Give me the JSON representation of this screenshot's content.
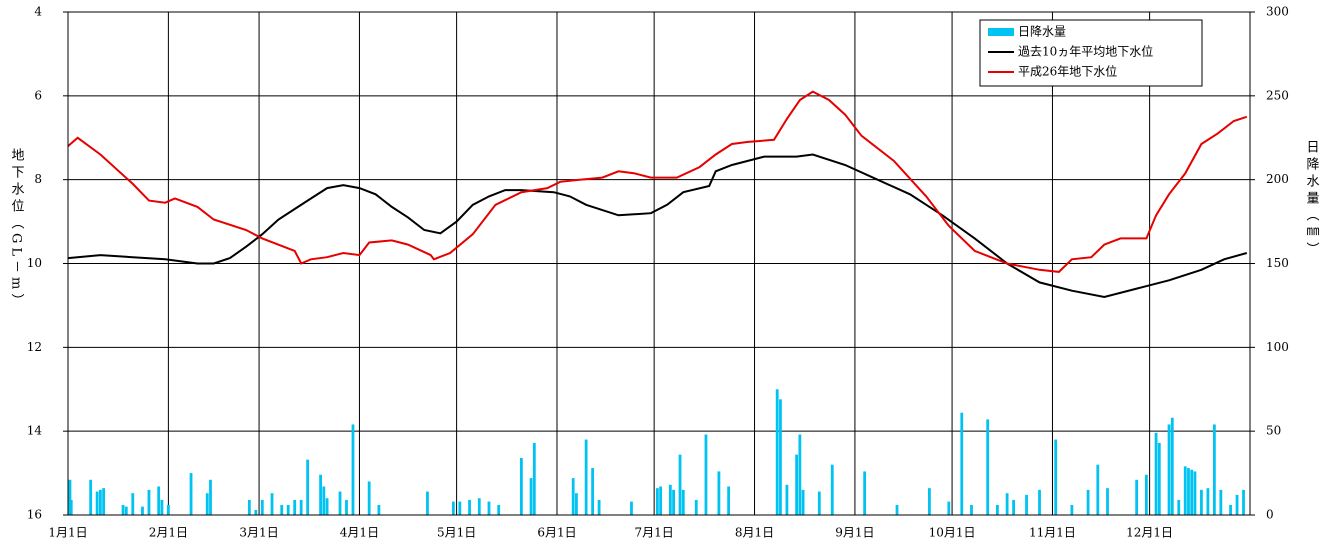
{
  "chart_data": {
    "type": "combo",
    "ylabel": "地下水位（GL－m）",
    "y2label": "日降水量（㎜）",
    "xlim": [
      0,
      365
    ],
    "xticks": [
      {
        "value": 0,
        "label": "1月1日"
      },
      {
        "value": 31,
        "label": "2月1日"
      },
      {
        "value": 59,
        "label": "3月1日"
      },
      {
        "value": 90,
        "label": "4月1日"
      },
      {
        "value": 120,
        "label": "5月1日"
      },
      {
        "value": 151,
        "label": "6月1日"
      },
      {
        "value": 181,
        "label": "7月1日"
      },
      {
        "value": 212,
        "label": "8月1日"
      },
      {
        "value": 243,
        "label": "9月1日"
      },
      {
        "value": 273,
        "label": "10月1日"
      },
      {
        "value": 304,
        "label": "11月1日"
      },
      {
        "value": 334,
        "label": "12月1日"
      }
    ],
    "ylim": [
      16,
      4
    ],
    "yticks": [
      4,
      6,
      8,
      10,
      12,
      14,
      16
    ],
    "y2lim": [
      0,
      300
    ],
    "y2ticks": [
      0,
      50,
      100,
      150,
      200,
      250,
      300
    ],
    "grid": true,
    "legend": "upper right",
    "series": [
      {
        "name": "日降水量",
        "type": "bar",
        "axis": "y2",
        "color": "#00c3f2",
        "x": [
          0.6,
          1,
          7,
          9,
          10,
          11,
          17,
          18,
          20,
          23,
          25,
          28,
          29,
          31,
          38,
          43,
          44,
          56,
          58,
          60,
          63,
          66,
          68,
          70,
          72,
          74,
          78,
          79,
          80,
          84,
          86,
          88,
          93,
          96,
          111,
          119,
          121,
          124,
          127,
          130,
          133,
          140,
          143,
          144,
          156,
          157,
          160,
          162,
          164,
          174,
          182,
          183,
          186,
          187,
          189,
          190,
          194,
          197,
          201,
          204,
          219,
          220,
          222,
          225,
          226,
          227,
          232,
          236,
          246,
          256,
          266,
          272,
          276,
          279,
          284,
          287,
          290,
          292,
          296,
          300,
          305,
          310,
          315,
          318,
          321,
          330,
          333,
          336,
          337,
          340,
          341,
          343,
          345,
          346,
          347,
          348,
          350,
          352,
          354,
          356,
          359,
          361,
          363
        ],
        "values": [
          21,
          9,
          21,
          14,
          15,
          16,
          6,
          5,
          13,
          5,
          15,
          17,
          9,
          6,
          25,
          13,
          21,
          9,
          3,
          9,
          13,
          6,
          6,
          9,
          9,
          33,
          24,
          17,
          10,
          14,
          9,
          54,
          20,
          6,
          14,
          8,
          8,
          9,
          10,
          8,
          6,
          34,
          22,
          43,
          22,
          13,
          45,
          28,
          9,
          8,
          16,
          17,
          18,
          15,
          36,
          15,
          9,
          48,
          26,
          17,
          75,
          69,
          18,
          36,
          48,
          15,
          14,
          30,
          26,
          6,
          16,
          8,
          61,
          6,
          57,
          6,
          13,
          9,
          12,
          15,
          45,
          6,
          15,
          30,
          16,
          21,
          24,
          49,
          43,
          54,
          58,
          9,
          29,
          28,
          27,
          26,
          15,
          16,
          54,
          15,
          6,
          12,
          15
        ]
      },
      {
        "name": "過去10ヵ年平均地下水位",
        "type": "line",
        "color": "#000000",
        "x": [
          0,
          10,
          20,
          30,
          40,
          45,
          50,
          55,
          60,
          65,
          70,
          75,
          80,
          85,
          90,
          95,
          100,
          105,
          110,
          115,
          120,
          125,
          130,
          135,
          140,
          150,
          155,
          160,
          170,
          180,
          185,
          190,
          198,
          200,
          205,
          215,
          225,
          230,
          240,
          250,
          260,
          270,
          280,
          290,
          300,
          310,
          320,
          330,
          340,
          350,
          357,
          364
        ],
        "values": [
          9.87,
          9.8,
          9.85,
          9.9,
          10.0,
          10.0,
          9.87,
          9.6,
          9.3,
          8.95,
          8.7,
          8.45,
          8.2,
          8.13,
          8.2,
          8.35,
          8.65,
          8.9,
          9.2,
          9.28,
          9.0,
          8.6,
          8.4,
          8.25,
          8.25,
          8.3,
          8.4,
          8.6,
          8.85,
          8.8,
          8.6,
          8.3,
          8.15,
          7.8,
          7.65,
          7.45,
          7.45,
          7.4,
          7.65,
          8.0,
          8.35,
          8.85,
          9.4,
          10.0,
          10.45,
          10.65,
          10.8,
          10.6,
          10.4,
          10.15,
          9.9,
          9.75
        ]
      },
      {
        "name": "平成26年地下水位",
        "type": "line",
        "color": "#e60000",
        "x": [
          0,
          3,
          10,
          20,
          25,
          30,
          33,
          40,
          45,
          55,
          60,
          70,
          72,
          75,
          80,
          85,
          90,
          93,
          100,
          105,
          112,
          113,
          118,
          125,
          132,
          140,
          148,
          152,
          158,
          165,
          170,
          175,
          180,
          188,
          195,
          200,
          205,
          210,
          218,
          222,
          226,
          230,
          235,
          240,
          245,
          255,
          265,
          272,
          280,
          290,
          300,
          306,
          310,
          316,
          320,
          325,
          333,
          336,
          340,
          345,
          350,
          355,
          360,
          364
        ],
        "values": [
          7.2,
          7.0,
          7.4,
          8.1,
          8.5,
          8.55,
          8.45,
          8.65,
          8.95,
          9.2,
          9.4,
          9.7,
          10.0,
          9.9,
          9.85,
          9.75,
          9.8,
          9.5,
          9.45,
          9.55,
          9.8,
          9.9,
          9.75,
          9.3,
          8.6,
          8.3,
          8.2,
          8.05,
          8.0,
          7.95,
          7.8,
          7.85,
          7.95,
          7.95,
          7.7,
          7.4,
          7.15,
          7.1,
          7.05,
          6.55,
          6.1,
          5.9,
          6.1,
          6.45,
          6.95,
          7.55,
          8.4,
          9.1,
          9.7,
          10.0,
          10.15,
          10.2,
          9.9,
          9.85,
          9.55,
          9.4,
          9.4,
          8.85,
          8.35,
          7.85,
          7.15,
          6.9,
          6.6,
          6.5
        ]
      }
    ]
  }
}
